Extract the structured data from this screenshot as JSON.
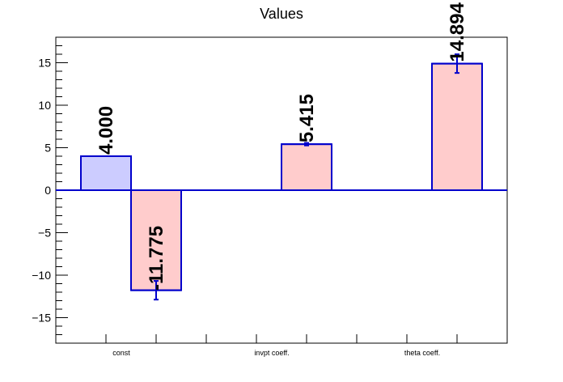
{
  "chart_data": {
    "type": "bar",
    "title": "Values",
    "xlabel": "",
    "ylabel": "",
    "categories": [
      "const",
      "invpt coeff.",
      "theta coeff."
    ],
    "ylim": [
      -18,
      18
    ],
    "yticks": [
      -15,
      -10,
      -5,
      0,
      5,
      10,
      15
    ],
    "ytick_labels": [
      "−15",
      "−10",
      "−5",
      "0",
      "5",
      "10",
      "15"
    ],
    "grid": false,
    "legend": "none",
    "series": [
      {
        "values": [
          4.0,
          null,
          null
        ],
        "labels": [
          "4.000",
          null,
          null
        ],
        "errors": [
          0,
          null,
          null
        ],
        "color": "#ccccff"
      },
      {
        "values": [
          -11.775,
          5.415,
          14.894
        ],
        "labels": [
          "-11.775",
          "5.415",
          "14.894"
        ],
        "errors": [
          1.1,
          0.15,
          1.1
        ],
        "color": "#ffcccc"
      }
    ],
    "bar_edge_color": "#0000cc"
  }
}
